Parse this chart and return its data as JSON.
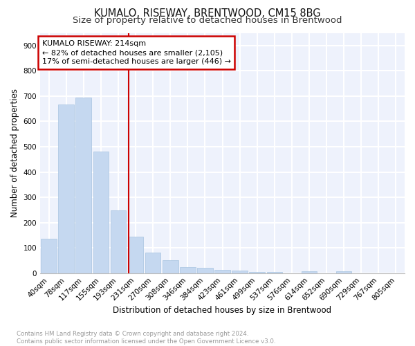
{
  "title": "KUMALO, RISEWAY, BRENTWOOD, CM15 8BG",
  "subtitle": "Size of property relative to detached houses in Brentwood",
  "xlabel": "Distribution of detached houses by size in Brentwood",
  "ylabel": "Number of detached properties",
  "categories": [
    "40sqm",
    "78sqm",
    "117sqm",
    "155sqm",
    "193sqm",
    "231sqm",
    "270sqm",
    "308sqm",
    "346sqm",
    "384sqm",
    "423sqm",
    "461sqm",
    "499sqm",
    "537sqm",
    "576sqm",
    "614sqm",
    "652sqm",
    "690sqm",
    "729sqm",
    "767sqm",
    "805sqm"
  ],
  "values": [
    137,
    668,
    693,
    482,
    249,
    145,
    82,
    50,
    25,
    21,
    12,
    10,
    5,
    5,
    0,
    8,
    0,
    8,
    0,
    0,
    0
  ],
  "bar_color": "#c5d8f0",
  "bar_edge_color": "#a8c4e0",
  "vline_x": 4.58,
  "vline_color": "#cc0000",
  "annotation_text": "KUMALO RISEWAY: 214sqm\n← 82% of detached houses are smaller (2,105)\n17% of semi-detached houses are larger (446) →",
  "annotation_box_color": "#cc0000",
  "ylim": [
    0,
    950
  ],
  "yticks": [
    0,
    100,
    200,
    300,
    400,
    500,
    600,
    700,
    800,
    900
  ],
  "background_color": "#eef2fc",
  "grid_color": "#ffffff",
  "footer": "Contains HM Land Registry data © Crown copyright and database right 2024.\nContains public sector information licensed under the Open Government Licence v3.0.",
  "title_fontsize": 10.5,
  "subtitle_fontsize": 9.5,
  "tick_fontsize": 7.5,
  "ylabel_fontsize": 8.5,
  "xlabel_fontsize": 8.5,
  "annot_fontsize": 8.0
}
